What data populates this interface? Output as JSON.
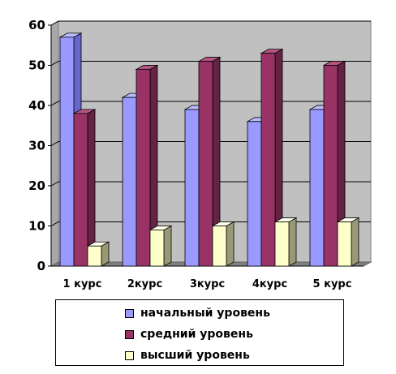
{
  "chart_data": {
    "type": "bar",
    "categories": [
      "1 курс",
      "2курс",
      "3курс",
      "4курс",
      "5 курс"
    ],
    "series": [
      {
        "name": "начальный уровень",
        "values": [
          57,
          42,
          39,
          36,
          39
        ],
        "color": "#9999ff",
        "side": "#6666cc",
        "top": "#bbbbff"
      },
      {
        "name": "средний уровень",
        "values": [
          38,
          49,
          51,
          53,
          50
        ],
        "color": "#993366",
        "side": "#662244",
        "top": "#b35580"
      },
      {
        "name": "высший уровень",
        "values": [
          5,
          9,
          10,
          11,
          11
        ],
        "color": "#ffffcc",
        "side": "#999977",
        "top": "#ffffee"
      }
    ],
    "ylim": [
      0,
      60
    ],
    "yticks": [
      0,
      10,
      20,
      30,
      40,
      50,
      60
    ],
    "grid": true,
    "wall_color": "#c0c0c0",
    "legend_position": "bottom"
  }
}
